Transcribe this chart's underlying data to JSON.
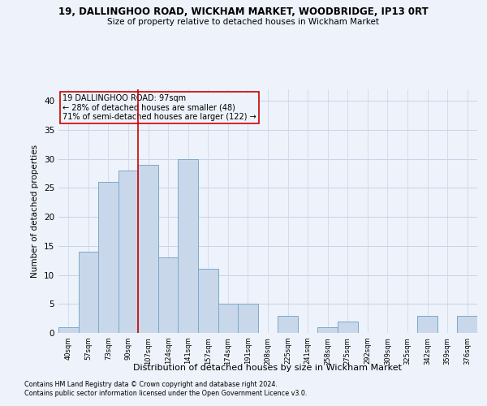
{
  "title1": "19, DALLINGHOO ROAD, WICKHAM MARKET, WOODBRIDGE, IP13 0RT",
  "title2": "Size of property relative to detached houses in Wickham Market",
  "xlabel": "Distribution of detached houses by size in Wickham Market",
  "ylabel": "Number of detached properties",
  "footnote1": "Contains HM Land Registry data © Crown copyright and database right 2024.",
  "footnote2": "Contains public sector information licensed under the Open Government Licence v3.0.",
  "annotation_line1": "19 DALLINGHOO ROAD: 97sqm",
  "annotation_line2": "← 28% of detached houses are smaller (48)",
  "annotation_line3": "71% of semi-detached houses are larger (122) →",
  "bar_color": "#c8d8ea",
  "bar_edge_color": "#7aaac8",
  "vline_color": "#cc0000",
  "categories": [
    "40sqm",
    "57sqm",
    "73sqm",
    "90sqm",
    "107sqm",
    "124sqm",
    "141sqm",
    "157sqm",
    "174sqm",
    "191sqm",
    "208sqm",
    "225sqm",
    "241sqm",
    "258sqm",
    "275sqm",
    "292sqm",
    "309sqm",
    "325sqm",
    "342sqm",
    "359sqm",
    "376sqm"
  ],
  "values": [
    1,
    14,
    26,
    28,
    29,
    13,
    30,
    11,
    5,
    5,
    0,
    3,
    0,
    1,
    2,
    0,
    0,
    0,
    3,
    0,
    3
  ],
  "ylim": [
    0,
    42
  ],
  "yticks": [
    0,
    5,
    10,
    15,
    20,
    25,
    30,
    35,
    40
  ],
  "grid_color": "#c8d4e8",
  "bg_color": "#eef2fa"
}
